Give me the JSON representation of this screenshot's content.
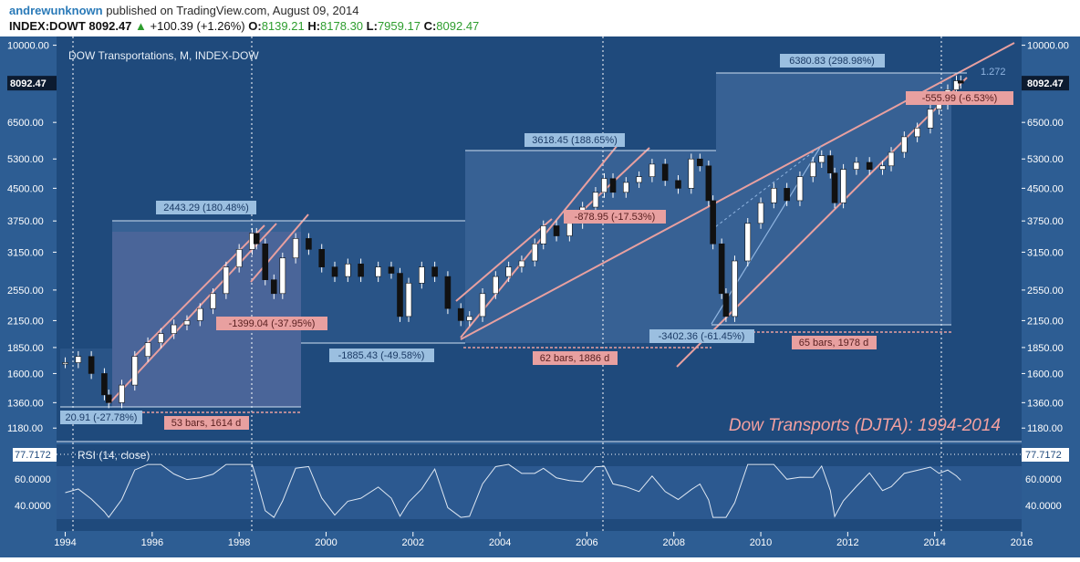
{
  "header": {
    "username": "andrewunknown",
    "published_text": "published on TradingView.com, August 09, 2014",
    "symbol": "INDEX:DOWT",
    "last": "8092.47",
    "change_arrow": "▲",
    "change": "+100.39 (+1.26%)",
    "o_label": "O:",
    "o_value": "8139.21",
    "h_label": "H:",
    "h_value": "8178.30",
    "l_label": "L:",
    "l_value": "7959.17",
    "c_label": "C:",
    "c_value": "8092.47"
  },
  "chart_data": {
    "type": "candlestick",
    "title": "DOW Transportations, M, INDEX-DOW",
    "watermark": "Dow Transports (DJTA): 1994-2014",
    "scale": "log",
    "y_ticks": [
      "10000.00",
      "8092.47",
      "6500.00",
      "5300.00",
      "4500.00",
      "3750.00",
      "3150.00",
      "2550.00",
      "2150.00",
      "1850.00",
      "1600.00",
      "1360.00",
      "1180.00"
    ],
    "x_ticks": [
      "1994",
      "1996",
      "1998",
      "2000",
      "2002",
      "2004",
      "2006",
      "2008",
      "2010",
      "2012",
      "2014",
      "2016"
    ],
    "x_range": [
      1993.8,
      2016.0
    ],
    "y_range": [
      1100,
      10500
    ],
    "last_price_label": "8092.47",
    "monthly_close_points": [
      [
        1994.0,
        1700
      ],
      [
        1994.3,
        1760
      ],
      [
        1994.6,
        1600
      ],
      [
        1994.9,
        1420
      ],
      [
        1995.0,
        1360
      ],
      [
        1995.3,
        1500
      ],
      [
        1995.6,
        1760
      ],
      [
        1995.9,
        1900
      ],
      [
        1996.2,
        2000
      ],
      [
        1996.5,
        2100
      ],
      [
        1996.8,
        2150
      ],
      [
        1997.1,
        2300
      ],
      [
        1997.4,
        2500
      ],
      [
        1997.7,
        2900
      ],
      [
        1998.0,
        3200
      ],
      [
        1998.3,
        3500
      ],
      [
        1998.4,
        3300
      ],
      [
        1998.6,
        2700
      ],
      [
        1998.8,
        2500
      ],
      [
        1999.0,
        3050
      ],
      [
        1999.3,
        3400
      ],
      [
        1999.6,
        3200
      ],
      [
        1999.9,
        2900
      ],
      [
        2000.2,
        2750
      ],
      [
        2000.5,
        2950
      ],
      [
        2000.8,
        2750
      ],
      [
        2001.2,
        2900
      ],
      [
        2001.5,
        2800
      ],
      [
        2001.7,
        2200
      ],
      [
        2001.9,
        2650
      ],
      [
        2002.2,
        2900
      ],
      [
        2002.5,
        2750
      ],
      [
        2002.8,
        2300
      ],
      [
        2003.1,
        2150
      ],
      [
        2003.3,
        2200
      ],
      [
        2003.6,
        2500
      ],
      [
        2003.9,
        2750
      ],
      [
        2004.2,
        2900
      ],
      [
        2004.5,
        3000
      ],
      [
        2004.8,
        3300
      ],
      [
        2005.0,
        3650
      ],
      [
        2005.3,
        3450
      ],
      [
        2005.6,
        3700
      ],
      [
        2005.9,
        4050
      ],
      [
        2006.2,
        4400
      ],
      [
        2006.4,
        4750
      ],
      [
        2006.6,
        4400
      ],
      [
        2006.9,
        4650
      ],
      [
        2007.2,
        4800
      ],
      [
        2007.5,
        5150
      ],
      [
        2007.8,
        4700
      ],
      [
        2008.1,
        4500
      ],
      [
        2008.4,
        5300
      ],
      [
        2008.6,
        5100
      ],
      [
        2008.8,
        4200
      ],
      [
        2008.9,
        3300
      ],
      [
        2009.1,
        2500
      ],
      [
        2009.2,
        2200
      ],
      [
        2009.4,
        3000
      ],
      [
        2009.7,
        3700
      ],
      [
        2010.0,
        4150
      ],
      [
        2010.3,
        4500
      ],
      [
        2010.6,
        4200
      ],
      [
        2010.9,
        4800
      ],
      [
        2011.2,
        5200
      ],
      [
        2011.4,
        5400
      ],
      [
        2011.6,
        4900
      ],
      [
        2011.7,
        4150
      ],
      [
        2011.9,
        5000
      ],
      [
        2012.2,
        5200
      ],
      [
        2012.5,
        5000
      ],
      [
        2012.8,
        5100
      ],
      [
        2013.0,
        5500
      ],
      [
        2013.3,
        6000
      ],
      [
        2013.6,
        6300
      ],
      [
        2013.9,
        7000
      ],
      [
        2014.1,
        7200
      ],
      [
        2014.3,
        7800
      ],
      [
        2014.5,
        8200
      ],
      [
        2014.6,
        8092
      ]
    ]
  },
  "annotations": {
    "range_1_label": "2443.29 (180.48%)",
    "range_2_label": "-1399.04 (-37.95%)",
    "range_3_label": "-1885.43 (-49.58%)",
    "range_4_label": "3618.45 (188.65%)",
    "range_5_label": "-878.95 (-17.53%)",
    "range_6_label": "-3402.36 (-61.45%)",
    "range_7_label": "6380.83 (298.98%)",
    "range_8_label": "-555.99 (-6.53%)",
    "range_9_label": "20.91 (-27.78%)",
    "bars_1_label": "53 bars, 1614 d",
    "bars_2_label": "62 bars, 1886 d",
    "bars_3_label": "65 bars, 1978 d",
    "fib_label": "1.272"
  },
  "rsi": {
    "title": "RSI (14, close)",
    "value": "77.7172",
    "ticks": [
      "77.7172",
      "60.0000",
      "40.0000"
    ]
  },
  "colors": {
    "chart_bg": "#1f4a7c",
    "box_fill": "#3a6497",
    "box_fill_pink": "#5b6a9c",
    "channel": "#e8a0a0",
    "label_blue": "#9bbfe0",
    "label_pink": "#e8a0a0",
    "watermark": "#f2a0a0",
    "axis_text": "#ffffff"
  }
}
